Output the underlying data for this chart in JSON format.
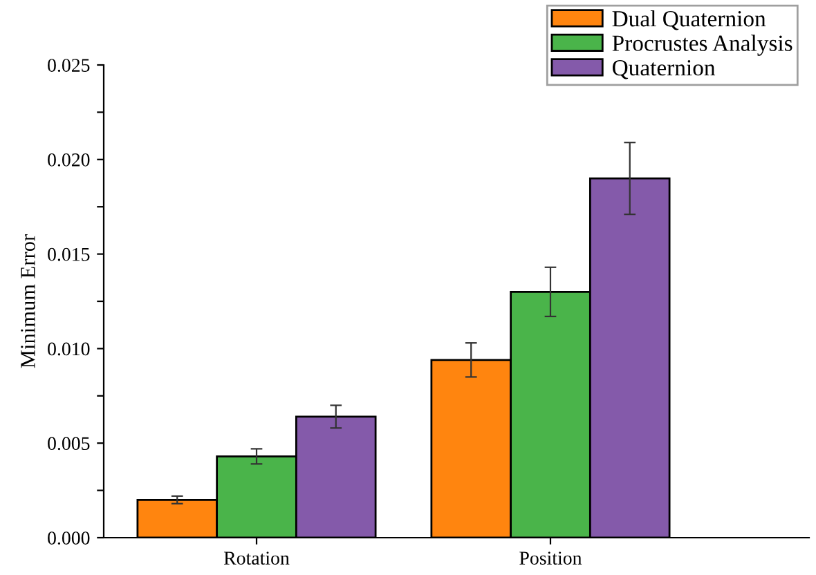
{
  "chart_data": {
    "type": "bar",
    "ylabel": "Minimum Error",
    "categories": [
      "Rotation",
      "Position"
    ],
    "series": [
      {
        "name": "Dual Quaternion",
        "color": "#ff850f",
        "values": [
          0.002,
          0.0094
        ],
        "errors": [
          0.0002,
          0.0009
        ]
      },
      {
        "name": "Procrustes Analysis",
        "color": "#4ab44a",
        "values": [
          0.0043,
          0.013
        ],
        "errors": [
          0.0004,
          0.0013
        ]
      },
      {
        "name": "Quaternion",
        "color": "#845aaa",
        "values": [
          0.0064,
          0.019
        ],
        "errors": [
          0.0006,
          0.0019
        ]
      }
    ],
    "ylim": [
      0,
      0.025
    ],
    "yticks": [
      {
        "value": 0,
        "label": "0.000"
      },
      {
        "value": 0.0025,
        "label": null
      },
      {
        "value": 0.005,
        "label": "0.005"
      },
      {
        "value": 0.0075,
        "label": null
      },
      {
        "value": 0.01,
        "label": "0.010"
      },
      {
        "value": 0.0125,
        "label": null
      },
      {
        "value": 0.015,
        "label": "0.015"
      },
      {
        "value": 0.0175,
        "label": null
      },
      {
        "value": 0.02,
        "label": "0.020"
      },
      {
        "value": 0.0225,
        "label": null
      },
      {
        "value": 0.025,
        "label": "0.025"
      }
    ],
    "grid": false,
    "legend": "top right"
  }
}
